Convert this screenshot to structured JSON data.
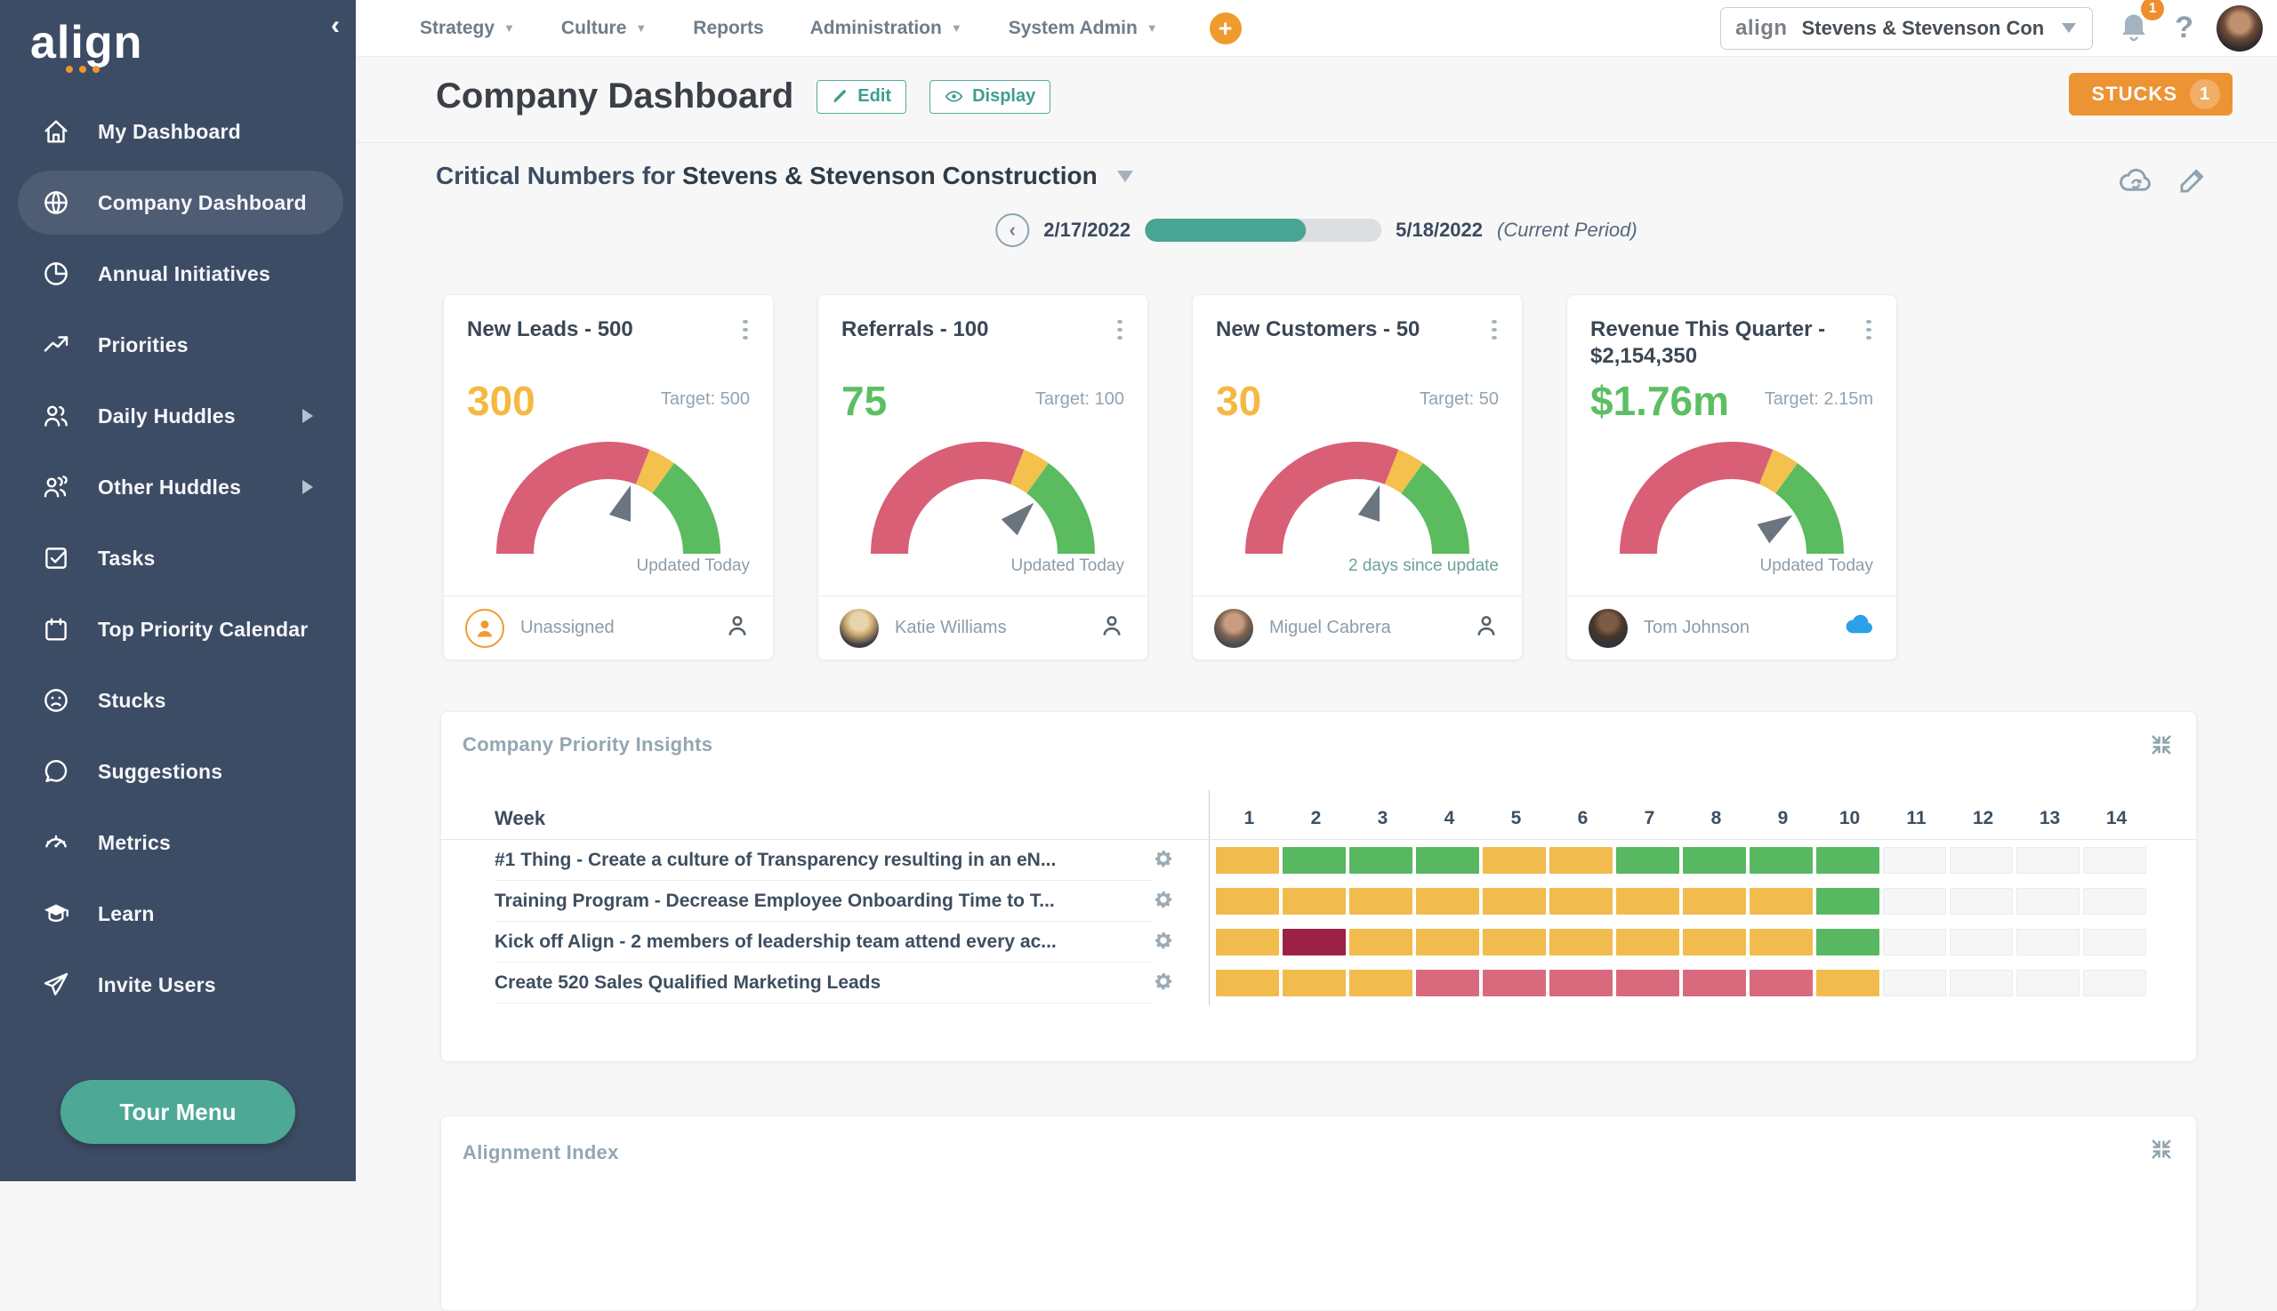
{
  "app": {
    "logo_text": "align",
    "sidebar_collapse_glyph": "‹"
  },
  "sidebar": {
    "items": [
      {
        "label": "My Dashboard",
        "icon": "home-icon",
        "active": false,
        "submenu": false
      },
      {
        "label": "Company Dashboard",
        "icon": "globe-icon",
        "active": true,
        "submenu": false
      },
      {
        "label": "Annual Initiatives",
        "icon": "pie-chart-icon",
        "active": false,
        "submenu": false
      },
      {
        "label": "Priorities",
        "icon": "trending-up-icon",
        "active": false,
        "submenu": false
      },
      {
        "label": "Daily Huddles",
        "icon": "users-icon",
        "active": false,
        "submenu": true
      },
      {
        "label": "Other Huddles",
        "icon": "users-group-icon",
        "active": false,
        "submenu": true
      },
      {
        "label": "Tasks",
        "icon": "check-square-icon",
        "active": false,
        "submenu": false
      },
      {
        "label": "Top Priority Calendar",
        "icon": "calendar-icon",
        "active": false,
        "submenu": false
      },
      {
        "label": "Stucks",
        "icon": "frown-icon",
        "active": false,
        "submenu": false
      },
      {
        "label": "Suggestions",
        "icon": "speech-bubble-icon",
        "active": false,
        "submenu": false
      },
      {
        "label": "Metrics",
        "icon": "gauge-icon",
        "active": false,
        "submenu": false
      },
      {
        "label": "Learn",
        "icon": "graduation-cap-icon",
        "active": false,
        "submenu": false
      },
      {
        "label": "Invite Users",
        "icon": "paper-plane-icon",
        "active": false,
        "submenu": false
      }
    ],
    "tour_button_label": "Tour Menu"
  },
  "topnav": {
    "items": [
      {
        "label": "Strategy",
        "caret": true
      },
      {
        "label": "Culture",
        "caret": true
      },
      {
        "label": "Reports",
        "caret": false
      },
      {
        "label": "Administration",
        "caret": true
      },
      {
        "label": "System Admin",
        "caret": true
      }
    ],
    "add_button_glyph": "+"
  },
  "account": {
    "company_selector": {
      "logo_text": "align",
      "value": "Stevens & Stevenson Con"
    },
    "notifications_count": "1",
    "help_glyph": "?"
  },
  "page": {
    "title": "Company Dashboard",
    "edit_label": "Edit",
    "display_label": "Display",
    "stucks_label": "STUCKS",
    "stucks_count": "1"
  },
  "critical": {
    "heading_prefix": "Critical Numbers for ",
    "company_name": "Stevens & Stevenson Construction"
  },
  "period": {
    "start_date": "2/17/2022",
    "end_date": "5/18/2022",
    "suffix": "(Current Period)",
    "progress_pct": 68,
    "prev_glyph": "‹"
  },
  "gauge_style": {
    "segments": [
      {
        "color": "#d85f75",
        "frac": 0.62
      },
      {
        "color": "#f3c14c",
        "frac": 0.08
      },
      {
        "color": "#5abb5f",
        "frac": 0.3
      }
    ],
    "needle_color": "#6b7580"
  },
  "cards": [
    {
      "title": "New Leads - 500",
      "value": "300",
      "value_color": "#f5b942",
      "target_label": "Target: 500",
      "gauge_percent": 0.6,
      "status_note": "Updated Today",
      "status_note_color": "#8b9dab",
      "owner": "Unassigned",
      "owner_avatar": "unassigned",
      "footer_icon": "person-outline-icon"
    },
    {
      "title": "Referrals - 100",
      "value": "75",
      "value_color": "#5cbf63",
      "target_label": "Target: 100",
      "gauge_percent": 0.75,
      "status_note": "Updated Today",
      "status_note_color": "#8b9dab",
      "owner": "Katie Williams",
      "owner_avatar": "photo-blonde",
      "footer_icon": "person-outline-icon"
    },
    {
      "title": "New Customers - 50",
      "value": "30",
      "value_color": "#f5b942",
      "target_label": "Target: 50",
      "gauge_percent": 0.6,
      "status_note": "2 days since update",
      "status_note_color": "#6aa29b",
      "owner": "Miguel Cabrera",
      "owner_avatar": "photo-man",
      "footer_icon": "person-outline-icon"
    },
    {
      "title": "Revenue This Quarter - $2,154,350",
      "value": "$1.76m",
      "value_color": "#5cbf63",
      "target_label": "Target: 2.15m",
      "gauge_percent": 0.82,
      "status_note": "Updated Today",
      "status_note_color": "#8b9dab",
      "owner": "Tom Johnson",
      "owner_avatar": "photo-man-suit",
      "footer_icon": "cloud-blue-icon"
    }
  ],
  "insights": {
    "title": "Company Priority Insights",
    "week_label": "Week",
    "weeks": [
      "1",
      "2",
      "3",
      "4",
      "5",
      "6",
      "7",
      "8",
      "9",
      "10",
      "11",
      "12",
      "13",
      "14"
    ],
    "status_colors": {
      "green": "#58b761",
      "yellow": "#f2bb4d",
      "red": "#d96a7e",
      "darkred": "#9c2146",
      "empty": ""
    },
    "rows": [
      {
        "label": "#1 Thing - Create a culture of Transparency resulting in an eN...",
        "statuses": [
          "yellow",
          "green",
          "green",
          "green",
          "yellow",
          "yellow",
          "green",
          "green",
          "green",
          "green",
          "empty",
          "empty",
          "empty",
          "empty"
        ]
      },
      {
        "label": "Training Program - Decrease Employee Onboarding Time to T...",
        "statuses": [
          "yellow",
          "yellow",
          "yellow",
          "yellow",
          "yellow",
          "yellow",
          "yellow",
          "yellow",
          "yellow",
          "green",
          "empty",
          "empty",
          "empty",
          "empty"
        ]
      },
      {
        "label": "Kick off Align - 2 members of leadership team attend every ac...",
        "statuses": [
          "yellow",
          "darkred",
          "yellow",
          "yellow",
          "yellow",
          "yellow",
          "yellow",
          "yellow",
          "yellow",
          "green",
          "empty",
          "empty",
          "empty",
          "empty"
        ]
      },
      {
        "label": "Create 520 Sales Qualified Marketing Leads",
        "statuses": [
          "yellow",
          "yellow",
          "yellow",
          "red",
          "red",
          "red",
          "red",
          "red",
          "red",
          "yellow",
          "empty",
          "empty",
          "empty",
          "empty"
        ]
      }
    ]
  },
  "alignment": {
    "title": "Alignment Index"
  }
}
